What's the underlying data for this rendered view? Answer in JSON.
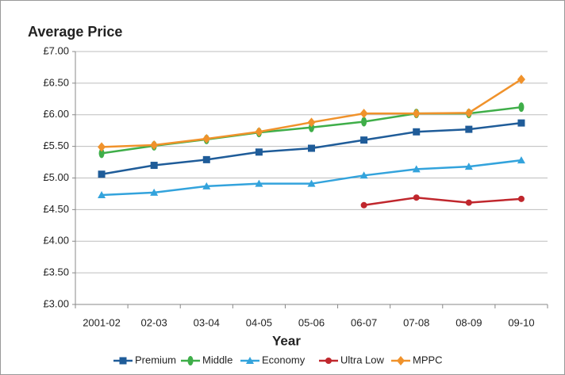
{
  "chart_data": {
    "type": "line",
    "title": "Average Price",
    "x_label": "Year",
    "categories": [
      "2001-02",
      "02-03",
      "03-04",
      "04-05",
      "05-06",
      "06-07",
      "07-08",
      "08-09",
      "09-10"
    ],
    "series": [
      {
        "name": "Premium",
        "color": "#1f5c99",
        "marker": "square",
        "values": [
          5.06,
          5.2,
          5.29,
          5.41,
          5.47,
          5.6,
          5.73,
          5.77,
          5.87
        ]
      },
      {
        "name": "Middle",
        "color": "#3fae49",
        "marker": "ellipse",
        "values": [
          5.39,
          5.51,
          5.61,
          5.72,
          5.8,
          5.89,
          6.02,
          6.02,
          6.12
        ]
      },
      {
        "name": "Economy",
        "color": "#33a3dc",
        "marker": "triangle",
        "values": [
          4.73,
          4.77,
          4.87,
          4.91,
          4.91,
          5.04,
          5.14,
          5.18,
          5.28
        ]
      },
      {
        "name": "Ultra Low",
        "color": "#c0272d",
        "marker": "circle",
        "values": [
          null,
          null,
          null,
          null,
          null,
          4.57,
          4.69,
          4.61,
          4.67
        ]
      },
      {
        "name": "MPPC",
        "color": "#f0922b",
        "marker": "diamond",
        "values": [
          5.49,
          5.52,
          5.62,
          5.73,
          5.88,
          6.02,
          6.02,
          6.03,
          6.56
        ]
      }
    ],
    "ylim": [
      3,
      7
    ],
    "yticks": [
      {
        "value": 3,
        "label": "£3.00"
      },
      {
        "value": 3.5,
        "label": "£3.50"
      },
      {
        "value": 4,
        "label": "£4.00"
      },
      {
        "value": 4.5,
        "label": "£4.50"
      },
      {
        "value": 5,
        "label": "£5.00"
      },
      {
        "value": 5.5,
        "label": "£5.50"
      },
      {
        "value": 6,
        "label": "£6.00"
      },
      {
        "value": 6.5,
        "label": "£6.50"
      },
      {
        "value": 7,
        "label": "£7.00"
      }
    ],
    "grid": true,
    "legend": "bottom"
  }
}
